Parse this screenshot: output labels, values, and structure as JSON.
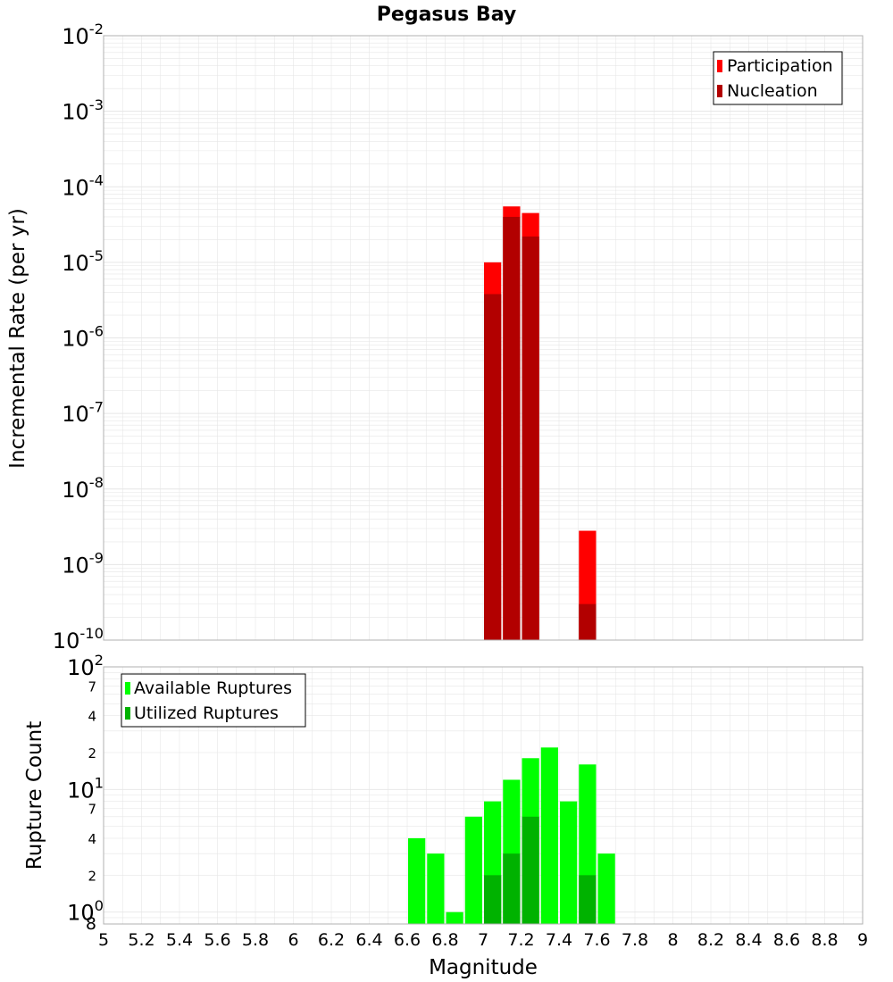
{
  "title": "Pegasus Bay",
  "colors": {
    "participation": "#ff0000",
    "nucleation": "#b20000",
    "available": "#00ff00",
    "utilized": "#00b200",
    "grid": "#e6e6e6",
    "axis_border": "#b0b0b0",
    "background": "#ffffff"
  },
  "chart_data": [
    {
      "type": "bar",
      "title": "Pegasus Bay",
      "xlabel": "",
      "ylabel": "Incremental Rate (per yr)",
      "yscale": "log",
      "xlim": [
        5,
        9
      ],
      "ylim": [
        1e-10,
        0.01
      ],
      "bin_width": 0.1,
      "grid": true,
      "legend": "top-right",
      "y_ticks": [
        {
          "base": "10",
          "exp": "-2"
        },
        {
          "base": "10",
          "exp": "-3"
        },
        {
          "base": "10",
          "exp": "-4"
        },
        {
          "base": "10",
          "exp": "-5"
        },
        {
          "base": "10",
          "exp": "-6"
        },
        {
          "base": "10",
          "exp": "-7"
        },
        {
          "base": "10",
          "exp": "-8"
        },
        {
          "base": "10",
          "exp": "-9"
        },
        {
          "base": "10",
          "exp": "-10"
        }
      ],
      "series": [
        {
          "name": "Participation",
          "color": "#ff0000",
          "x": [
            7.05,
            7.15,
            7.25,
            7.55
          ],
          "values": [
            1e-05,
            5.5e-05,
            4.5e-05,
            2.8e-09
          ]
        },
        {
          "name": "Nucleation",
          "color": "#b20000",
          "x": [
            7.05,
            7.15,
            7.25,
            7.55
          ],
          "values": [
            3.8e-06,
            4e-05,
            2.2e-05,
            3e-10
          ]
        }
      ]
    },
    {
      "type": "bar",
      "xlabel": "Magnitude",
      "ylabel": "Rupture Count",
      "yscale": "log",
      "xlim": [
        5,
        9
      ],
      "ylim": [
        0.8,
        100
      ],
      "bin_width": 0.1,
      "grid": true,
      "legend": "top-left",
      "x_ticks": [
        "5",
        "5.2",
        "5.4",
        "5.6",
        "5.8",
        "6",
        "6.2",
        "6.4",
        "6.6",
        "6.8",
        "7",
        "7.2",
        "7.4",
        "7.6",
        "7.8",
        "8",
        "8.2",
        "8.4",
        "8.6",
        "8.8",
        "9"
      ],
      "y_major_ticks": [
        {
          "value": 100,
          "base": "10",
          "exp": "2"
        },
        {
          "value": 10,
          "base": "10",
          "exp": "1"
        },
        {
          "value": 1,
          "base": "10",
          "exp": "0"
        }
      ],
      "y_minor_ticks": [
        {
          "value": 70,
          "label": "7"
        },
        {
          "value": 40,
          "label": "4"
        },
        {
          "value": 20,
          "label": "2"
        },
        {
          "value": 7,
          "label": "7"
        },
        {
          "value": 4,
          "label": "4"
        },
        {
          "value": 2,
          "label": "2"
        },
        {
          "value": 0.8,
          "label": "8"
        }
      ],
      "series": [
        {
          "name": "Available Ruptures",
          "color": "#00ff00",
          "x": [
            6.65,
            6.75,
            6.85,
            6.95,
            7.05,
            7.15,
            7.25,
            7.35,
            7.45,
            7.55,
            7.65
          ],
          "values": [
            4,
            3,
            1,
            6,
            8,
            12,
            18,
            22,
            8,
            16,
            3
          ]
        },
        {
          "name": "Utilized Ruptures",
          "color": "#00b200",
          "x": [
            7.05,
            7.15,
            7.25,
            7.55
          ],
          "values": [
            2,
            3,
            6,
            2
          ]
        }
      ]
    }
  ]
}
